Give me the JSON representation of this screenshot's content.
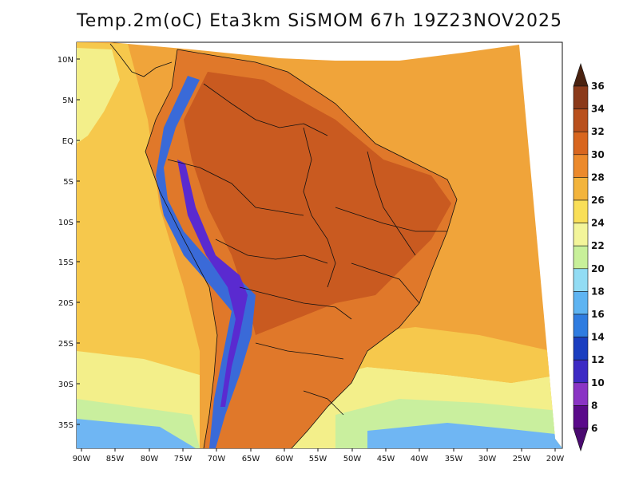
{
  "title": "Temp.2m(oC) Eta3km SiSMOM 67h 19Z23NOV2025",
  "map": {
    "lat_labels": [
      "10N",
      "5N",
      "EQ",
      "5S",
      "10S",
      "15S",
      "20S",
      "25S",
      "30S",
      "35S"
    ],
    "lon_labels": [
      "90W",
      "85W",
      "80W",
      "75W",
      "70W",
      "65W",
      "60W",
      "55W",
      "50W",
      "45W",
      "40W",
      "35W",
      "30W",
      "25W",
      "20W"
    ],
    "colorbar": {
      "levels": [
        "36",
        "34",
        "32",
        "30",
        "28",
        "26",
        "24",
        "22",
        "20",
        "18",
        "16",
        "14",
        "12",
        "10",
        "8",
        "6"
      ],
      "colors": [
        "#5a2b11",
        "#8b3a1a",
        "#b9501d",
        "#d8661f",
        "#ec8a2c",
        "#f3b43c",
        "#f9df58",
        "#f3f59a",
        "#c8f09a",
        "#92dcf4",
        "#5eb4f2",
        "#2f7ce0",
        "#1a3ec0",
        "#3d2ac4",
        "#8a34c4",
        "#5a0a8a"
      ],
      "top_arrow_color": "#4a2210",
      "bottom_arrow_color": "#4a0a70"
    },
    "field_colors": {
      "ocean_warm": "#f0a43a",
      "ocean_mild": "#f6c84c",
      "ocean_cool": "#f3ef8a",
      "ocean_cold": "#c9ef9e",
      "ocean_coldest": "#6fb6f3",
      "land_hot": "#c95a20",
      "land_warm": "#e0782a",
      "andes_cold": "#3a6ad8",
      "andes_coldest": "#5a2ad0",
      "border": "#111111"
    }
  }
}
